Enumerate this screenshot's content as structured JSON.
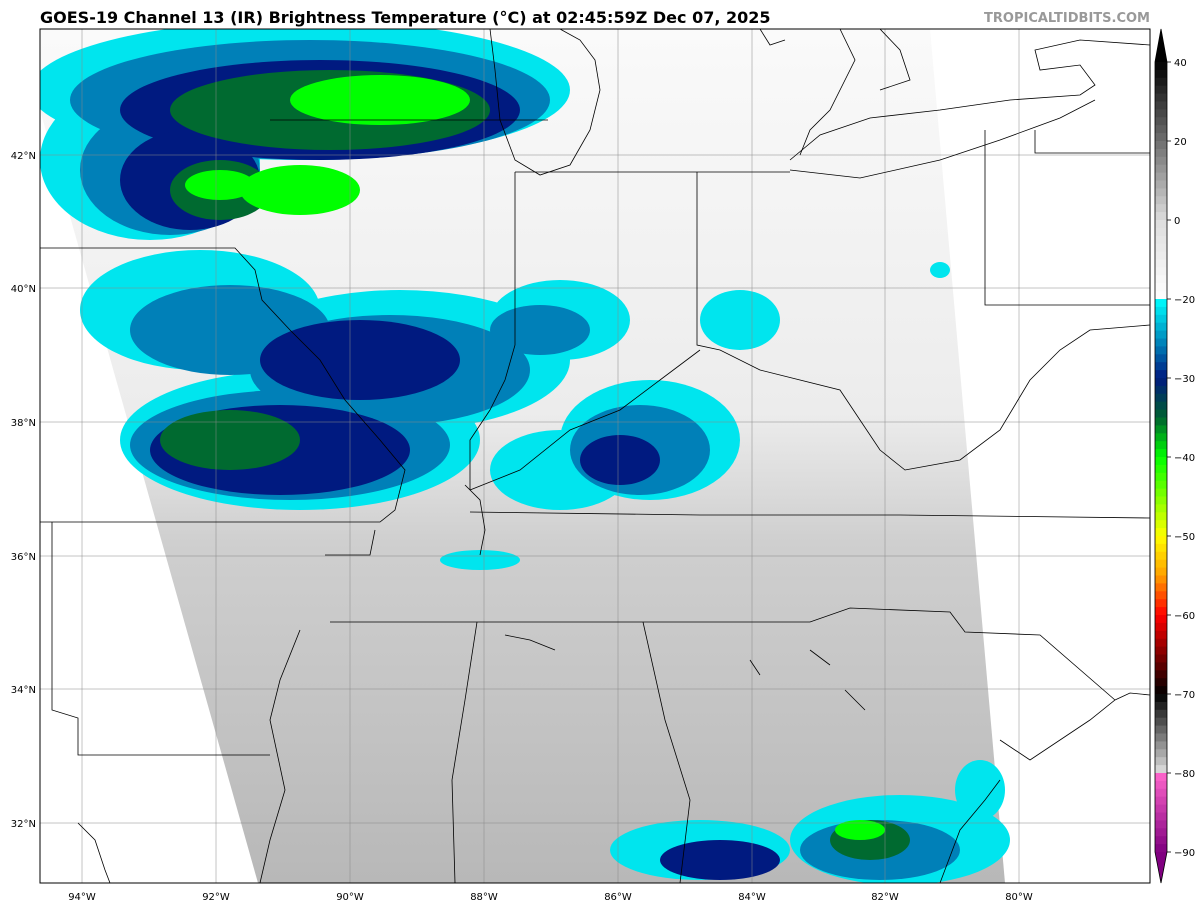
{
  "header": {
    "title": "GOES-19 Channel 13 (IR) Brightness Temperature (°C) at 02:45:59Z Dec 07, 2025",
    "watermark": "TROPICALTIDBITS.COM"
  },
  "map": {
    "longitude_labels": [
      "94°W",
      "92°W",
      "90°W",
      "88°W",
      "86°W",
      "84°W",
      "82°W",
      "80°W"
    ],
    "latitude_labels": [
      "42°N",
      "40°N",
      "38°N",
      "36°N",
      "34°N",
      "32°N"
    ],
    "gridlines": true
  },
  "colorbar": {
    "unit": "°C",
    "ticks": [
      "40",
      "20",
      "0",
      "−20",
      "−30",
      "−40",
      "−50",
      "−60",
      "−70",
      "−80",
      "−90"
    ],
    "colors": {
      "warm_top": "#000000",
      "warm_mid": "#dddddd",
      "cold_start": "#ffffff",
      "cyan": "#00ffff",
      "blue": "#0090c0",
      "navy": "#001a80",
      "dark_green": "#006030",
      "green": "#00ff00",
      "yellow": "#ffff00",
      "orange": "#ffa000",
      "red": "#ff0000",
      "dark_red": "#800000",
      "black": "#000000",
      "light_gray": "#e0e0e0",
      "pink": "#ff66cc",
      "purple": "#800080"
    }
  }
}
